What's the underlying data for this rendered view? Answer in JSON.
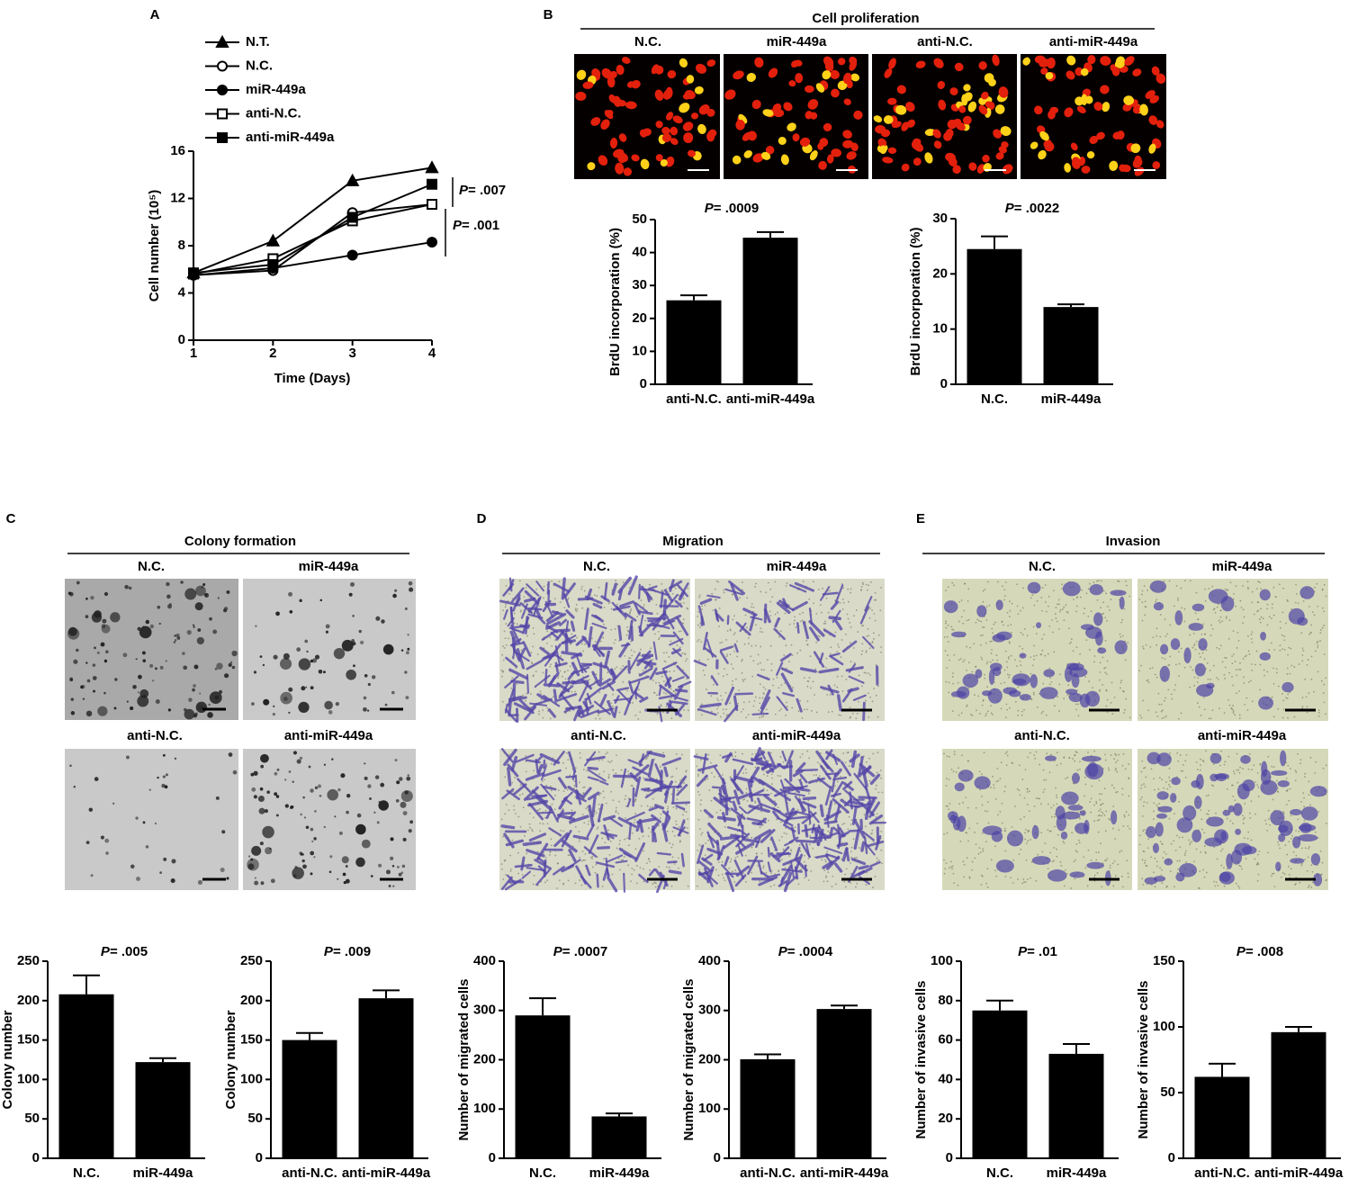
{
  "chart_data": [
    {
      "type": "line",
      "panel_label": "A",
      "xlabel": "Time (Days)",
      "ylabel": "Cell number (10⁵)",
      "x": [
        1,
        2,
        3,
        4
      ],
      "xlim": [
        1,
        4
      ],
      "xticks": [
        1,
        2,
        3,
        4
      ],
      "ylim": [
        0,
        16
      ],
      "yticks": [
        0,
        4,
        8,
        12,
        16
      ],
      "series": [
        {
          "name": "N.T.",
          "color": "#000000",
          "marker": "triangle",
          "marker_fill": true,
          "values": [
            5.7,
            8.4,
            13.5,
            14.6
          ]
        },
        {
          "name": "N.C.",
          "color": "#000000",
          "marker": "circle",
          "marker_fill": false,
          "values": [
            5.5,
            5.9,
            10.8,
            11.5
          ]
        },
        {
          "name": "miR-449a",
          "color": "#000000",
          "marker": "circle",
          "marker_fill": true,
          "values": [
            5.5,
            6.1,
            7.2,
            8.3
          ]
        },
        {
          "name": "anti-N.C.",
          "color": "#000000",
          "marker": "square",
          "marker_fill": false,
          "values": [
            5.6,
            6.9,
            10.1,
            11.5
          ]
        },
        {
          "name": "anti-miR-449a",
          "color": "#000000",
          "marker": "square",
          "marker_fill": true,
          "values": [
            5.7,
            6.4,
            10.4,
            13.2
          ]
        }
      ],
      "annotations": [
        "P= .007",
        "P= .001"
      ]
    },
    {
      "type": "bar",
      "ylabel": "BrdU incorporation (%)",
      "annotation": "P= .0009",
      "color": "#000000",
      "categories": [
        "anti-N.C.",
        "anti-miR-449a"
      ],
      "values": [
        25.5,
        44.5
      ],
      "errors": [
        1.5,
        1.7
      ],
      "ylim": [
        0,
        50
      ],
      "yticks": [
        0,
        10,
        20,
        30,
        40,
        50
      ]
    },
    {
      "type": "bar",
      "ylabel": "BrdU incorporation (%)",
      "annotation": "P= .0022",
      "color": "#000000",
      "categories": [
        "N.C.",
        "miR-449a"
      ],
      "values": [
        24.5,
        14.0
      ],
      "errors": [
        2.3,
        0.5
      ],
      "ylim": [
        0,
        30
      ],
      "yticks": [
        0,
        10,
        20,
        30
      ]
    },
    {
      "type": "bar",
      "ylabel": "Colony number",
      "annotation": "P= .005",
      "color": "#000000",
      "categories": [
        "N.C.",
        "miR-449a"
      ],
      "values": [
        208,
        122
      ],
      "errors": [
        24,
        5
      ],
      "ylim": [
        0,
        250
      ],
      "yticks": [
        0,
        50,
        100,
        150,
        200,
        250
      ]
    },
    {
      "type": "bar",
      "ylabel": "Colony number",
      "annotation": "P= .009",
      "color": "#000000",
      "categories": [
        "anti-N.C.",
        "anti-miR-449a"
      ],
      "values": [
        150,
        203
      ],
      "errors": [
        9,
        10
      ],
      "ylim": [
        0,
        250
      ],
      "yticks": [
        0,
        50,
        100,
        150,
        200,
        250
      ]
    },
    {
      "type": "bar",
      "ylabel": "Number of migrated cells",
      "annotation": "P= .0007",
      "color": "#000000",
      "categories": [
        "N.C.",
        "miR-449a"
      ],
      "values": [
        290,
        85
      ],
      "errors": [
        35,
        6
      ],
      "ylim": [
        0,
        400
      ],
      "yticks": [
        0,
        100,
        200,
        300,
        400
      ]
    },
    {
      "type": "bar",
      "ylabel": "Number of migrated cells",
      "annotation": "P= .0004",
      "color": "#000000",
      "categories": [
        "anti-N.C.",
        "anti-miR-449a"
      ],
      "values": [
        201,
        303
      ],
      "errors": [
        10,
        7
      ],
      "ylim": [
        0,
        400
      ],
      "yticks": [
        0,
        100,
        200,
        300,
        400
      ]
    },
    {
      "type": "bar",
      "ylabel": "Number of invasive cells",
      "annotation": "P= .01",
      "color": "#000000",
      "categories": [
        "N.C.",
        "miR-449a"
      ],
      "values": [
        75,
        53
      ],
      "errors": [
        5,
        5
      ],
      "ylim": [
        0,
        100
      ],
      "yticks": [
        0,
        20,
        40,
        60,
        80,
        100
      ]
    },
    {
      "type": "bar",
      "ylabel": "Number of invasive cells",
      "annotation": "P= .008",
      "color": "#000000",
      "categories": [
        "anti-N.C.",
        "anti-miR-449a"
      ],
      "values": [
        62,
        96
      ],
      "errors": [
        10,
        4
      ],
      "ylim": [
        0,
        150
      ],
      "yticks": [
        0,
        50,
        100,
        150
      ]
    }
  ],
  "image_panels": [
    {
      "label": "B",
      "title": "Cell proliferation",
      "images": [
        "N.C.",
        "miR-449a",
        "anti-N.C.",
        "anti-miR-449a"
      ]
    },
    {
      "label": "C",
      "title": "Colony formation",
      "images": [
        "N.C.",
        "miR-449a",
        "anti-N.C.",
        "anti-miR-449a"
      ]
    },
    {
      "label": "D",
      "title": "Migration",
      "images": [
        "N.C.",
        "miR-449a",
        "anti-N.C.",
        "anti-miR-449a"
      ]
    },
    {
      "label": "E",
      "title": "Invasion",
      "images": [
        "N.C.",
        "miR-449a",
        "anti-N.C.",
        "anti-miR-449a"
      ]
    }
  ]
}
